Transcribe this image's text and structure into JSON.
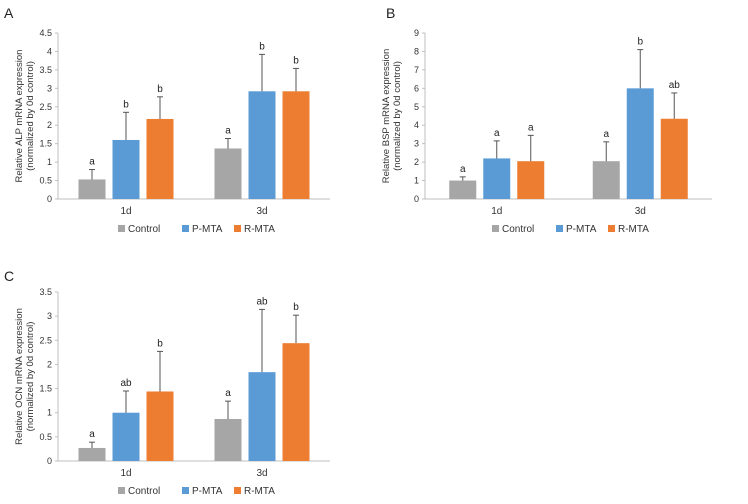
{
  "chart_data": [
    {
      "panel": "A",
      "type": "bar",
      "ylabel": [
        "Relative ALP mRNA expression",
        "(normalized by 0d control)"
      ],
      "ylim": [
        0,
        4.5
      ],
      "yticks": [
        "0",
        "0.5",
        "1",
        "1.5",
        "2",
        "2.5",
        "3",
        "3.5",
        "4",
        "4.5"
      ],
      "categories": [
        "1d",
        "3d"
      ],
      "series": [
        {
          "name": "Control",
          "color": "#a6a6a6",
          "values": [
            0.53,
            1.37
          ],
          "errors": [
            0.27,
            0.27
          ],
          "labels": [
            "a",
            "a"
          ]
        },
        {
          "name": "P-MTA",
          "color": "#5b9bd5",
          "values": [
            1.6,
            2.92
          ],
          "errors": [
            0.75,
            1.0
          ],
          "labels": [
            "b",
            "b"
          ]
        },
        {
          "name": "R-MTA",
          "color": "#ed7d31",
          "values": [
            2.17,
            2.92
          ],
          "errors": [
            0.6,
            0.62
          ],
          "labels": [
            "b",
            "b"
          ]
        }
      ]
    },
    {
      "panel": "B",
      "type": "bar",
      "ylabel": [
        "Relative BSP mRNA expression",
        "(normalized by 0d control)"
      ],
      "ylim": [
        0,
        9
      ],
      "yticks": [
        "0",
        "1",
        "2",
        "3",
        "4",
        "5",
        "6",
        "7",
        "8",
        "9"
      ],
      "categories": [
        "1d",
        "3d"
      ],
      "series": [
        {
          "name": "Control",
          "color": "#a6a6a6",
          "values": [
            1.0,
            2.05
          ],
          "errors": [
            0.2,
            1.05
          ],
          "labels": [
            "a",
            "a"
          ]
        },
        {
          "name": "P-MTA",
          "color": "#5b9bd5",
          "values": [
            2.2,
            6.0
          ],
          "errors": [
            0.95,
            2.1
          ],
          "labels": [
            "a",
            "b"
          ]
        },
        {
          "name": "R-MTA",
          "color": "#ed7d31",
          "values": [
            2.05,
            4.35
          ],
          "errors": [
            1.4,
            1.4
          ],
          "labels": [
            "a",
            "ab"
          ]
        }
      ]
    },
    {
      "panel": "C",
      "type": "bar",
      "ylabel": [
        "Relative OCN mRNA expression",
        "(normalized by 0d control)"
      ],
      "ylim": [
        0,
        3.5
      ],
      "yticks": [
        "0",
        "0.5",
        "1",
        "1.5",
        "2",
        "2.5",
        "3",
        "3.5"
      ],
      "categories": [
        "1d",
        "3d"
      ],
      "series": [
        {
          "name": "Control",
          "color": "#a6a6a6",
          "values": [
            0.27,
            0.87
          ],
          "errors": [
            0.12,
            0.37
          ],
          "labels": [
            "a",
            "a"
          ]
        },
        {
          "name": "P-MTA",
          "color": "#5b9bd5",
          "values": [
            1.0,
            1.84
          ],
          "errors": [
            0.45,
            1.3
          ],
          "labels": [
            "ab",
            "ab"
          ]
        },
        {
          "name": "R-MTA",
          "color": "#ed7d31",
          "values": [
            1.44,
            2.44
          ],
          "errors": [
            0.83,
            0.58
          ],
          "labels": [
            "b",
            "b"
          ]
        }
      ]
    }
  ]
}
